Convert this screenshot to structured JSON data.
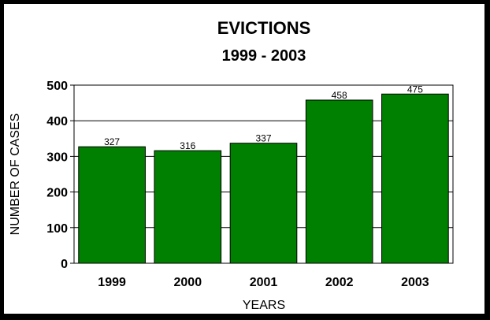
{
  "chart_data": {
    "type": "bar",
    "title": "EVICTIONS",
    "subtitle": "1999 - 2003",
    "xlabel": "YEARS",
    "ylabel": "NUMBER OF CASES",
    "categories": [
      "1999",
      "2000",
      "2001",
      "2002",
      "2003"
    ],
    "values": [
      327,
      316,
      337,
      458,
      475
    ],
    "data_labels": [
      "327",
      "316",
      "337",
      "458",
      "475"
    ],
    "ylim": [
      0,
      500
    ],
    "yticks": [
      0,
      100,
      200,
      300,
      400,
      500
    ],
    "ytick_labels": [
      "0",
      "100",
      "200",
      "300",
      "400",
      "500"
    ],
    "grid": true,
    "legend": "none",
    "colors": {
      "bar": "#008000",
      "background": "#000000",
      "plot": "#ffffff"
    }
  }
}
